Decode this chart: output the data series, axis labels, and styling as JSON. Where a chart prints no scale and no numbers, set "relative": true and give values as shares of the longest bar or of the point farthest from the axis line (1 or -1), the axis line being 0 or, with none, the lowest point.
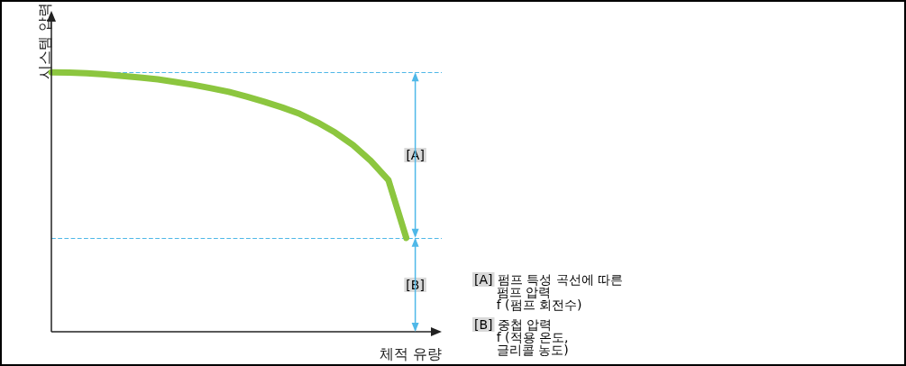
{
  "chart_data": {
    "type": "line",
    "relative": true,
    "xlabel": "체적 유량",
    "ylabel": "시스템 압력",
    "categories": [
      null,
      null,
      null,
      null,
      null,
      null,
      null,
      null,
      null,
      null,
      null,
      null,
      null,
      null,
      null,
      null,
      null,
      null,
      null,
      null,
      null,
      null,
      null
    ],
    "series": [
      {
        "color": "#8cc63f",
        "values": [
          1,
          0.999,
          0.997,
          0.992,
          0.986,
          0.98,
          0.973,
          0.963,
          0.952,
          0.939,
          0.925,
          0.907,
          0.887,
          0.865,
          0.84,
          0.807,
          0.768,
          0.72,
          0.659,
          0.584,
          0.362,
          null,
          null
        ]
      }
    ],
    "ref_lines": [
      {
        "axis": "y",
        "value": 1,
        "color": "#4fb8e8",
        "line_style": "dashed"
      },
      {
        "axis": "y",
        "value": 0.362,
        "color": "#4fb8e8",
        "line_style": "dashed"
      }
    ],
    "annotations": [
      "[A]",
      "[B]",
      "[A] 펌프 특성 곡선에 따른\n펌프 압력\nf (펌프 회전수)",
      "[B] 중첩 압력\nf (적용 온도,\n글리콜 농도)"
    ],
    "grid": false,
    "marker": "none",
    "line_style": "solid"
  }
}
